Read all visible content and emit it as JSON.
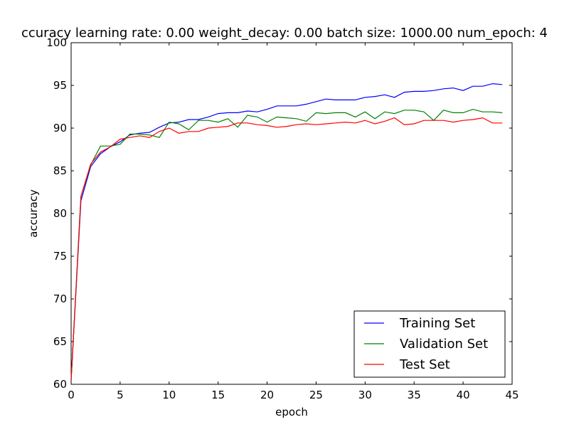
{
  "chart_data": {
    "type": "line",
    "title": "ccuracy learning rate: 0.00 weight_decay: 0.00 batch size: 1000.00 num_epoch: 4",
    "xlabel": "epoch",
    "ylabel": "accuracy",
    "xlim": [
      0,
      45
    ],
    "ylim": [
      60,
      100
    ],
    "xticks": [
      "0",
      "5",
      "10",
      "15",
      "20",
      "25",
      "30",
      "35",
      "40",
      "45"
    ],
    "yticks": [
      "60",
      "65",
      "70",
      "75",
      "80",
      "85",
      "90",
      "95",
      "100"
    ],
    "xtick_values": [
      0,
      5,
      10,
      15,
      20,
      25,
      30,
      35,
      40,
      45
    ],
    "ytick_values": [
      60,
      65,
      70,
      75,
      80,
      85,
      90,
      95,
      100
    ],
    "grid": false,
    "legend_position": "lower-right",
    "x": [
      0,
      1,
      2,
      3,
      4,
      5,
      6,
      7,
      8,
      9,
      10,
      11,
      12,
      13,
      14,
      15,
      16,
      17,
      18,
      19,
      20,
      21,
      22,
      23,
      24,
      25,
      26,
      27,
      28,
      29,
      30,
      31,
      32,
      33,
      34,
      35,
      36,
      37,
      38,
      39,
      40,
      41,
      42,
      43,
      44
    ],
    "series": [
      {
        "name": "Training Set",
        "color": "#0000ff",
        "values": [
          60.5,
          81.5,
          85.5,
          87.0,
          87.8,
          88.4,
          89.2,
          89.4,
          89.5,
          90.1,
          90.6,
          90.7,
          91.0,
          91.0,
          91.3,
          91.7,
          91.8,
          91.8,
          92.0,
          91.9,
          92.2,
          92.6,
          92.6,
          92.6,
          92.8,
          93.1,
          93.4,
          93.3,
          93.3,
          93.3,
          93.6,
          93.7,
          93.9,
          93.6,
          94.2,
          94.3,
          94.3,
          94.4,
          94.6,
          94.7,
          94.4,
          94.9,
          94.9,
          95.2,
          95.1
        ]
      },
      {
        "name": "Validation Set",
        "color": "#008000",
        "values": [
          60.5,
          82.0,
          85.7,
          87.9,
          87.9,
          88.1,
          89.3,
          89.3,
          89.2,
          88.9,
          90.7,
          90.5,
          89.8,
          90.9,
          90.9,
          90.7,
          91.1,
          90.1,
          91.5,
          91.3,
          90.7,
          91.3,
          91.2,
          91.1,
          90.8,
          91.8,
          91.7,
          91.8,
          91.8,
          91.3,
          91.9,
          91.1,
          91.9,
          91.7,
          92.1,
          92.1,
          91.9,
          90.9,
          92.1,
          91.8,
          91.8,
          92.2,
          91.9,
          91.9,
          91.8
        ]
      },
      {
        "name": "Test Set",
        "color": "#ff0000",
        "values": [
          60.5,
          82.0,
          85.8,
          87.2,
          87.8,
          88.7,
          88.9,
          89.1,
          88.9,
          89.6,
          90.0,
          89.4,
          89.6,
          89.6,
          90.0,
          90.1,
          90.2,
          90.6,
          90.6,
          90.4,
          90.3,
          90.1,
          90.2,
          90.4,
          90.5,
          90.4,
          90.5,
          90.6,
          90.7,
          90.6,
          90.9,
          90.5,
          90.8,
          91.2,
          90.4,
          90.5,
          90.9,
          90.9,
          90.9,
          90.7,
          90.9,
          91.0,
          91.2,
          90.6,
          90.6
        ]
      }
    ]
  }
}
